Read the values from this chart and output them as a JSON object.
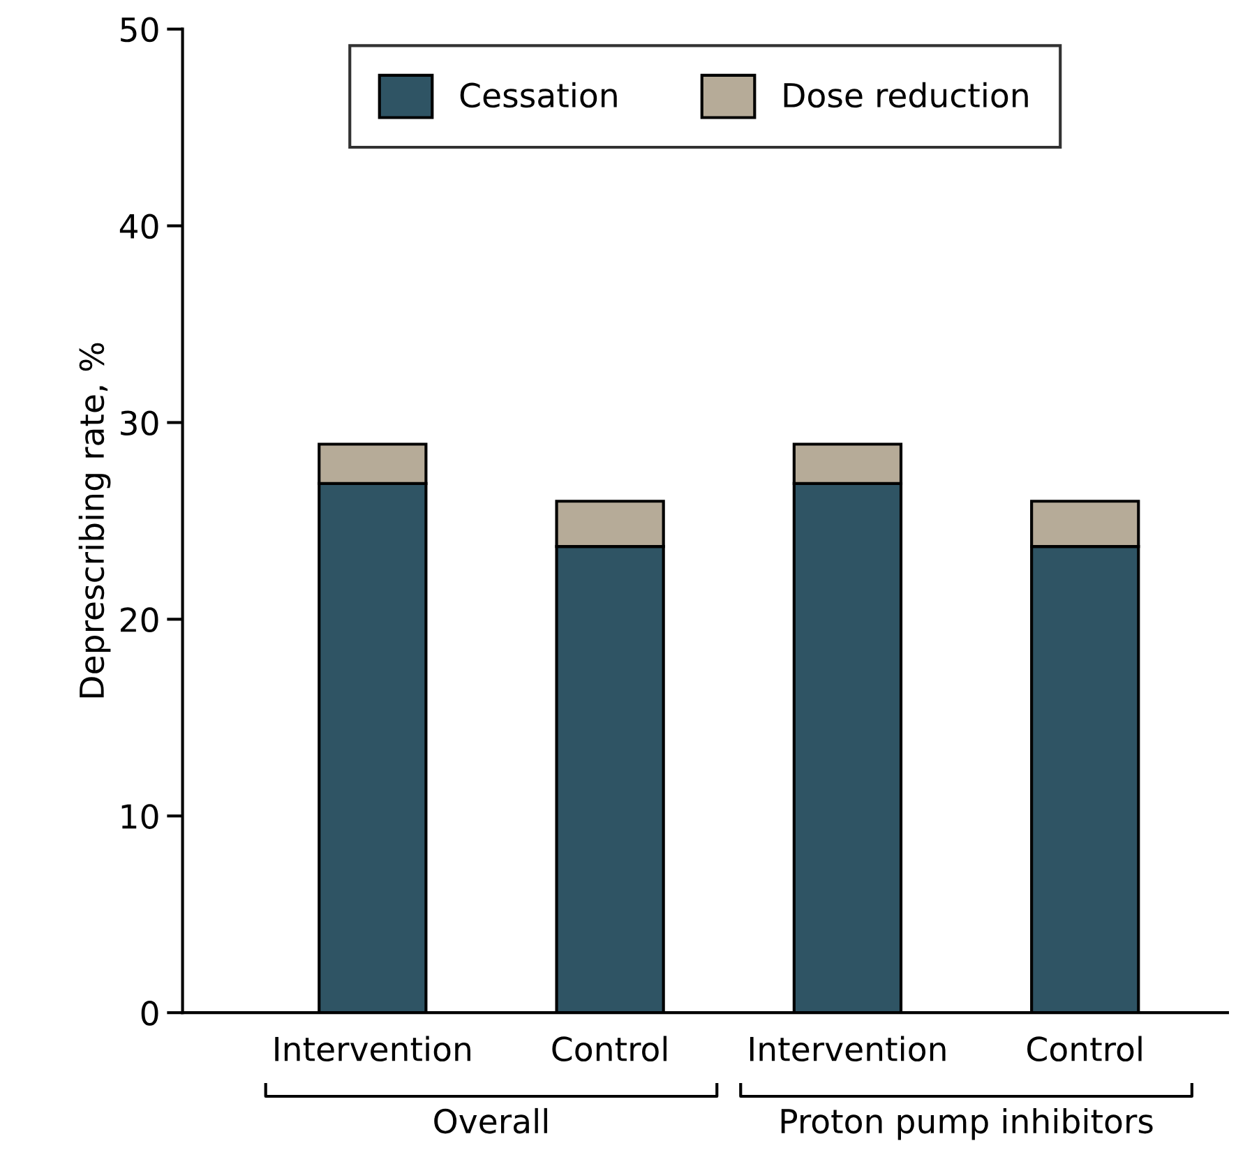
{
  "chart_data": {
    "type": "bar",
    "stacked": true,
    "ylabel": "Deprescribing rate, %",
    "categories": [
      "Intervention",
      "Control",
      "Intervention",
      "Control"
    ],
    "series": [
      {
        "name": "Cessation",
        "color": "#2f5464",
        "values": [
          26.9,
          23.7,
          26.9,
          23.7
        ]
      },
      {
        "name": "Dose reduction",
        "color": "#b6ab98",
        "values": [
          2.0,
          2.3,
          2.0,
          2.3
        ]
      }
    ],
    "ylim": [
      0,
      50
    ],
    "yticks": [
      0,
      10,
      20,
      30,
      40,
      50
    ],
    "grid": false,
    "legend": "top",
    "annotations": [
      "Overall",
      "Proton pump inhibitors"
    ]
  }
}
